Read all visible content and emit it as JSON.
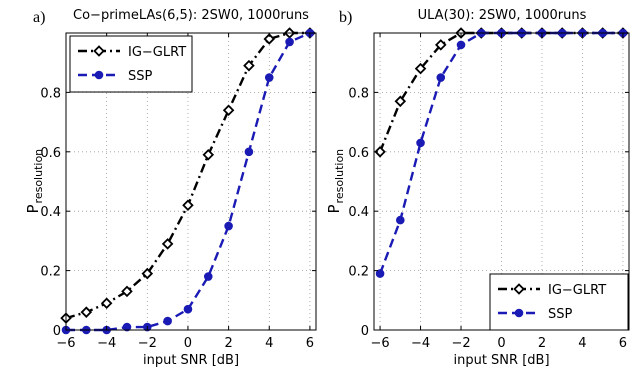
{
  "chart_data": [
    {
      "panel_label": "a)",
      "type": "line",
      "title": "Co−primeLAs(6,5): 2SW0, 1000runs",
      "xlabel": "input SNR [dB]",
      "ylabel_main": "P",
      "ylabel_sub": "resolution",
      "xlim": [
        -6,
        6.3
      ],
      "ylim": [
        0,
        1
      ],
      "xticks": [
        -6,
        -4,
        -2,
        0,
        2,
        4,
        6
      ],
      "yticks": [
        0,
        0.2,
        0.4,
        0.6,
        0.8
      ],
      "ytick_labels": [
        "0",
        "0.2",
        "0.4",
        "0.6",
        "0.8"
      ],
      "grid": true,
      "legend_position": "top-left",
      "x": [
        -6,
        -5,
        -4,
        -3,
        -2,
        -1,
        0,
        1,
        2,
        3,
        4,
        5,
        6
      ],
      "series": [
        {
          "name": "IG−GLRT",
          "color": "#000000",
          "dash": "dashdot",
          "marker": "diamond",
          "values": [
            0.04,
            0.06,
            0.09,
            0.13,
            0.19,
            0.29,
            0.42,
            0.59,
            0.74,
            0.89,
            0.98,
            1.0,
            1.0
          ]
        },
        {
          "name": "SSP",
          "color": "#1a1ab4",
          "dash": "dashed",
          "marker": "circle",
          "values": [
            0.0,
            0.0,
            0.0,
            0.01,
            0.01,
            0.03,
            0.07,
            0.18,
            0.35,
            0.6,
            0.85,
            0.97,
            1.0
          ]
        }
      ]
    },
    {
      "panel_label": "b)",
      "type": "line",
      "title": "ULA(30): 2SW0, 1000runs",
      "xlabel": "input SNR [dB]",
      "ylabel_main": "P",
      "ylabel_sub": "resolution",
      "xlim": [
        -6.3,
        6.3
      ],
      "ylim": [
        0,
        1
      ],
      "xticks": [
        -6,
        -4,
        -2,
        0,
        2,
        4,
        6
      ],
      "yticks": [
        0,
        0.2,
        0.4,
        0.6,
        0.8
      ],
      "ytick_labels": [
        "0",
        "0.2",
        "0.4",
        "0.6",
        "0.8"
      ],
      "grid": true,
      "legend_position": "bottom-right",
      "x": [
        -6,
        -5,
        -4,
        -3,
        -2,
        -1,
        0,
        1,
        2,
        3,
        4,
        5,
        6
      ],
      "series": [
        {
          "name": "IG−GLRT",
          "color": "#000000",
          "dash": "dashdot",
          "marker": "diamond",
          "values": [
            0.6,
            0.77,
            0.88,
            0.96,
            1.0,
            1.0,
            1.0,
            1.0,
            1.0,
            1.0,
            1.0,
            1.0,
            1.0
          ]
        },
        {
          "name": "SSP",
          "color": "#1a1ab4",
          "dash": "dashed",
          "marker": "circle",
          "values": [
            0.19,
            0.37,
            0.63,
            0.85,
            0.96,
            1.0,
            1.0,
            1.0,
            1.0,
            1.0,
            1.0,
            1.0,
            1.0
          ]
        }
      ]
    }
  ]
}
